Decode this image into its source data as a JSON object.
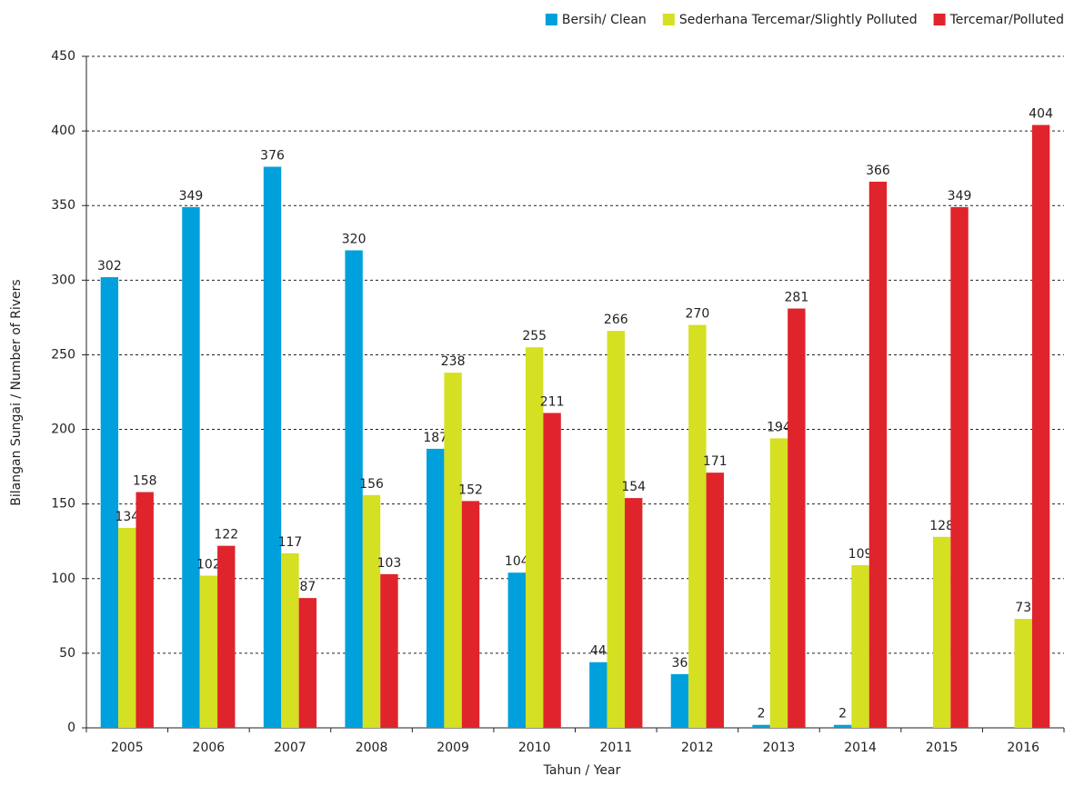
{
  "chart_data": {
    "type": "bar",
    "xlabel": "Tahun / Year",
    "ylabel": "Bilangan Sungai / Number of Rivers",
    "categories": [
      "2005",
      "2006",
      "2007",
      "2008",
      "2009",
      "2010",
      "2011",
      "2012",
      "2013",
      "2014",
      "2015",
      "2016"
    ],
    "series": [
      {
        "name": "Bersih/ Clean",
        "color": "#00a0dc",
        "values": [
          302,
          349,
          376,
          320,
          187,
          104,
          44,
          36,
          2,
          2,
          null,
          null
        ]
      },
      {
        "name": "Sederhana Tercemar/Slightly Polluted",
        "color": "#d4e021",
        "values": [
          134,
          102,
          117,
          156,
          238,
          255,
          266,
          270,
          194,
          109,
          128,
          73
        ]
      },
      {
        "name": "Tercemar/Polluted",
        "color": "#e0242c",
        "values": [
          158,
          122,
          87,
          103,
          152,
          211,
          154,
          171,
          281,
          366,
          349,
          404
        ]
      }
    ],
    "ylim": [
      0,
      450
    ],
    "yticks": [
      0,
      50,
      100,
      150,
      200,
      250,
      300,
      350,
      400,
      450
    ],
    "grid": true,
    "legend": "top-right"
  }
}
